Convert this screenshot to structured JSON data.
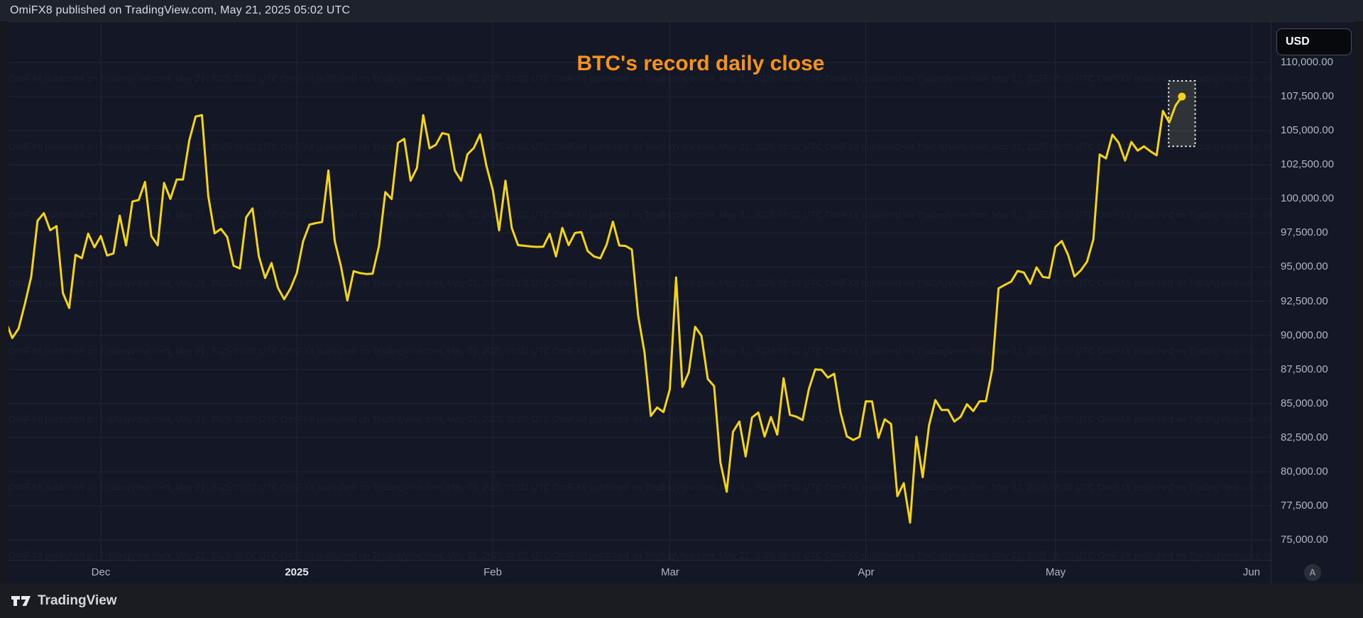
{
  "header": {
    "publish_info": "OmiFX8 published on TradingView.com, May 21, 2025 05:02 UTC"
  },
  "footer": {
    "brand": "TradingView"
  },
  "chart": {
    "title": "BTC's record daily close",
    "title_color": "#f7931a",
    "line_color": "#f5d418",
    "background_color": "#141826",
    "grid_color": "#202634",
    "currency_badge": "USD",
    "auto_scale_label": "A",
    "watermark_text": "OmiFX8 published on TradingView.com, May 21, 2025 05:02 UTC"
  },
  "chart_data": {
    "type": "line",
    "title": "BTC's record daily close",
    "series_name": "BTC / USD daily close",
    "frequency": "daily",
    "start_date": "2024-11-16",
    "end_date": "2025-05-21",
    "ylim": [
      73500,
      113000
    ],
    "grid": true,
    "y_ticks": [
      {
        "value": 110000,
        "label": "110,000.00"
      },
      {
        "value": 107500,
        "label": "107,500.00"
      },
      {
        "value": 105000,
        "label": "105,000.00"
      },
      {
        "value": 102500,
        "label": "102,500.00"
      },
      {
        "value": 100000,
        "label": "100,000.00"
      },
      {
        "value": 97500,
        "label": "97,500.00"
      },
      {
        "value": 95000,
        "label": "95,000.00"
      },
      {
        "value": 92500,
        "label": "92,500.00"
      },
      {
        "value": 90000,
        "label": "90,000.00"
      },
      {
        "value": 87500,
        "label": "87,500.00"
      },
      {
        "value": 85000,
        "label": "85,000.00"
      },
      {
        "value": 82500,
        "label": "82,500.00"
      },
      {
        "value": 80000,
        "label": "80,000.00"
      },
      {
        "value": 77500,
        "label": "77,500.00"
      },
      {
        "value": 75000,
        "label": "75,000.00"
      }
    ],
    "x_ticks": [
      {
        "label": "Dec",
        "day": 15,
        "bold": false
      },
      {
        "label": "2025",
        "day": 46,
        "bold": true
      },
      {
        "label": "Feb",
        "day": 77,
        "bold": false
      },
      {
        "label": "Mar",
        "day": 105,
        "bold": false
      },
      {
        "label": "Apr",
        "day": 136,
        "bold": false
      },
      {
        "label": "May",
        "day": 166,
        "bold": false
      },
      {
        "label": "Jun",
        "day": 197,
        "bold": false
      }
    ],
    "values": [
      91000,
      89800,
      90500,
      92300,
      94300,
      98400,
      98950,
      97700,
      98000,
      93100,
      92000,
      95900,
      95650,
      97450,
      96450,
      97280,
      95850,
      96000,
      98770,
      96590,
      99800,
      99920,
      101240,
      97280,
      96600,
      101170,
      100000,
      101420,
      101420,
      104300,
      106030,
      106140,
      100200,
      97470,
      97800,
      97200,
      95100,
      94900,
      98650,
      99300,
      95800,
      94200,
      95300,
      93500,
      92640,
      93430,
      94560,
      96890,
      98110,
      98220,
      98310,
      102080,
      96920,
      95040,
      92550,
      94700,
      94560,
      94490,
      94520,
      96560,
      100500,
      99990,
      104100,
      104400,
      101330,
      102260,
      106140,
      103700,
      103960,
      104820,
      104710,
      102080,
      101330,
      103270,
      103730,
      104730,
      102400,
      100640,
      97690,
      101330,
      97870,
      96610,
      96560,
      96510,
      96480,
      96500,
      97440,
      95780,
      97870,
      96610,
      97500,
      97570,
      96180,
      95780,
      95640,
      96640,
      98330,
      96580,
      96550,
      96280,
      91420,
      88740,
      84090,
      84710,
      84370,
      86030,
      94240,
      86220,
      87280,
      90620,
      89960,
      86800,
      86280,
      80700,
      78530,
      82930,
      83680,
      81120,
      83970,
      84340,
      82580,
      84010,
      82720,
      86850,
      84170,
      84040,
      83790,
      86070,
      87500,
      87470,
      86900,
      87180,
      84350,
      82600,
      82330,
      82550,
      85160,
      85150,
      82480,
      83840,
      83500,
      78210,
      79160,
      76270,
      82570,
      79600,
      83400,
      85250,
      84520,
      84540,
      83680,
      84030,
      84950,
      84450,
      85160,
      85170,
      87510,
      93440,
      93700,
      93940,
      94720,
      94600,
      93780,
      94980,
      94280,
      94210,
      96490,
      96910,
      95890,
      94320,
      94750,
      95400,
      97030,
      103250,
      102970,
      104700,
      104110,
      102810,
      104170,
      103540,
      103850,
      103490,
      103190,
      106450,
      105600,
      106850,
      107500
    ],
    "last_close": 107500,
    "last_point_marker": true,
    "highlight_box": {
      "from_day_index": 183.9,
      "to_day_index": 188.1,
      "top_price": 108650,
      "bottom_price": 103850
    }
  }
}
